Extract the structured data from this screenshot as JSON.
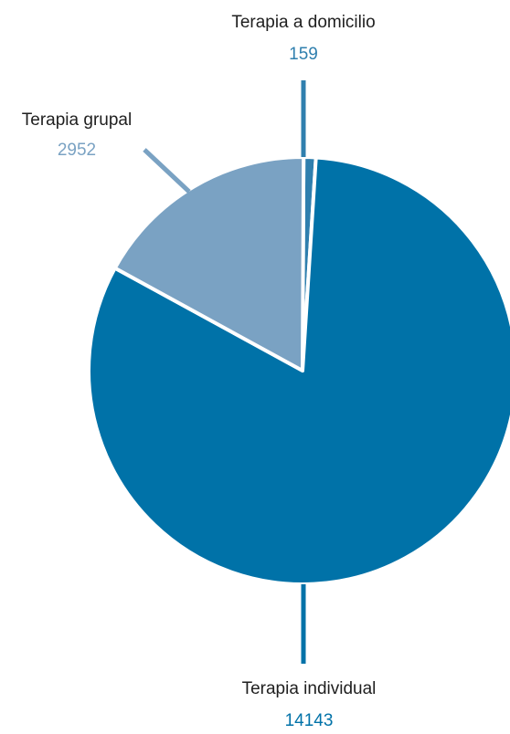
{
  "chart_data": {
    "type": "pie",
    "slices": [
      {
        "label": "Terapia individual",
        "value": 14143,
        "color": "#0072a8"
      },
      {
        "label": "Terapia grupal",
        "value": 2952,
        "color": "#7aa2c3"
      },
      {
        "label": "Terapia a domicilio",
        "value": 159,
        "color": "#2f7fae"
      }
    ],
    "label_color": "#1f1f1f",
    "slice_border_color": "#ffffff"
  }
}
